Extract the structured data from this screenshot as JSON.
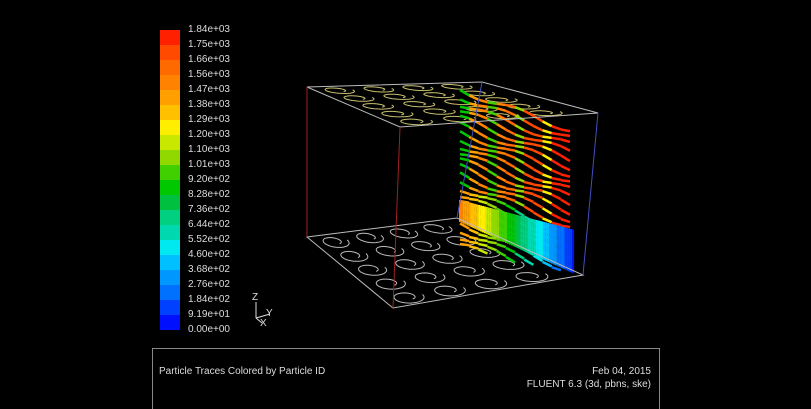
{
  "colorbar": {
    "labels": [
      "1.84e+03",
      "1.75e+03",
      "1.66e+03",
      "1.56e+03",
      "1.47e+03",
      "1.38e+03",
      "1.29e+03",
      "1.20e+03",
      "1.10e+03",
      "1.01e+03",
      "9.20e+02",
      "8.28e+02",
      "7.36e+02",
      "6.44e+02",
      "5.52e+02",
      "4.60e+02",
      "3.68e+02",
      "2.76e+02",
      "1.84e+02",
      "9.19e+01",
      "0.00e+00"
    ],
    "colors": [
      "#ff2000",
      "#ff4a00",
      "#ff6a00",
      "#ff8200",
      "#ffa000",
      "#ffc000",
      "#ffee00",
      "#c8e800",
      "#90d800",
      "#40d000",
      "#00c800",
      "#00c040",
      "#00d080",
      "#00d8b0",
      "#00e8f0",
      "#00c0ff",
      "#0098ff",
      "#0070ff",
      "#0040ff",
      "#0010ff"
    ]
  },
  "axes": {
    "z": "Z",
    "y": "Y",
    "x": "X"
  },
  "footer": {
    "title": "Particle Traces Colored by Particle ID",
    "date": "Feb 04, 2015",
    "version": "FLUENT 6.3 (3d, pbns, ske)"
  }
}
